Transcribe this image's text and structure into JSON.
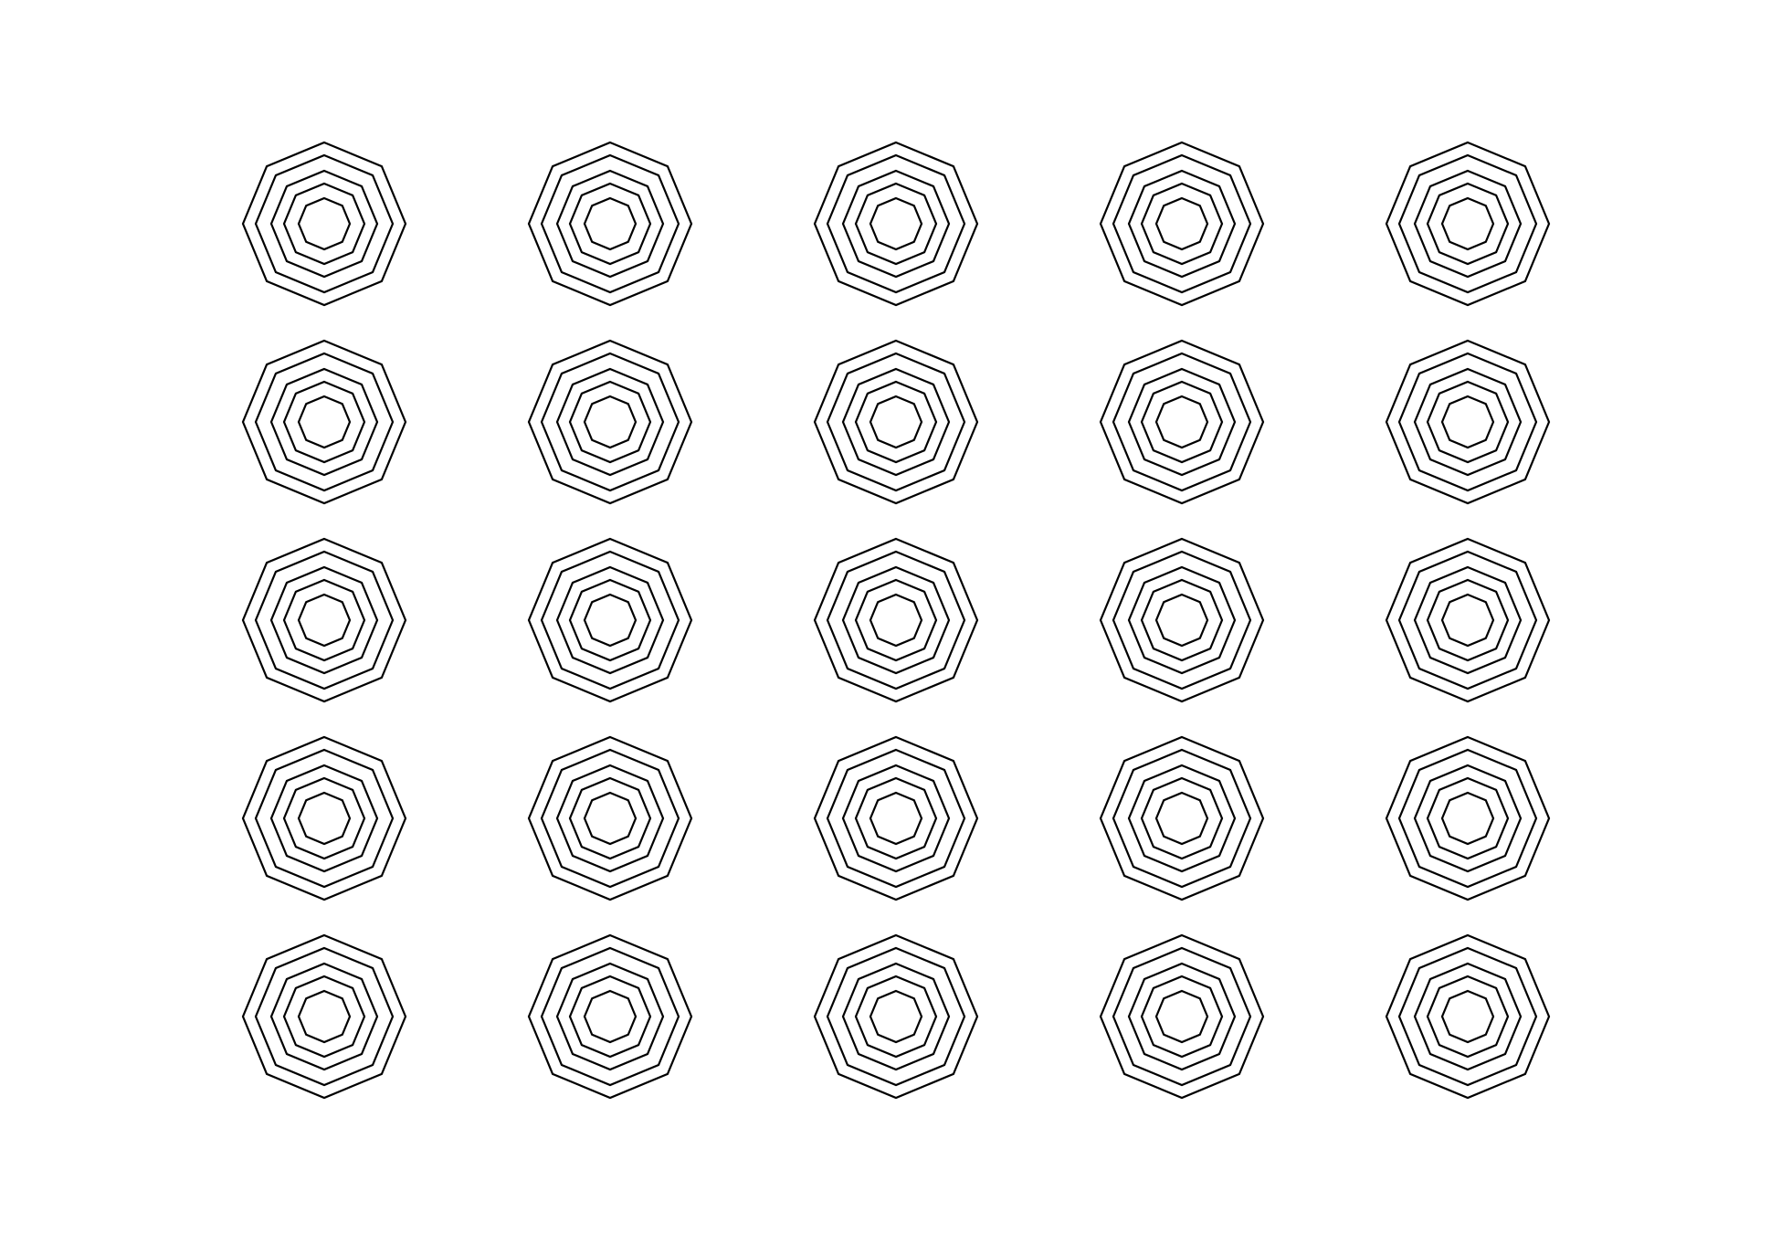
{
  "pattern": {
    "shape": "octagon",
    "rows": 5,
    "columns": 5,
    "rings_per_motif": 5,
    "stroke_color": "#000000",
    "background_color": "#ffffff"
  }
}
